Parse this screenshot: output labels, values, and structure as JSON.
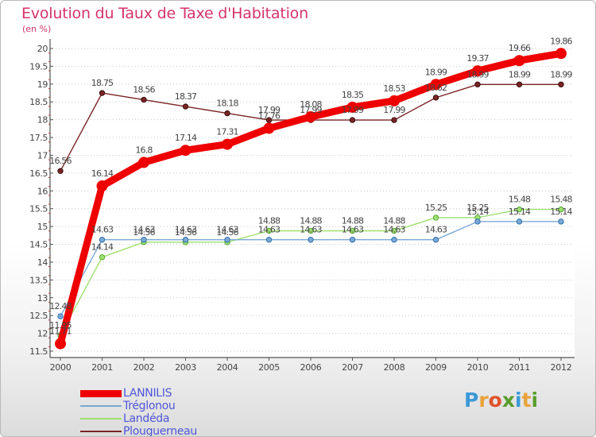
{
  "header": {
    "title": "Evolution du Taux de Taxe d'Habitation",
    "subtitle": "(en %)"
  },
  "logo": {
    "letters": [
      "P",
      "r",
      "o",
      "x",
      "i",
      "t",
      "i"
    ],
    "colors": [
      "#3a9ad9",
      "#e8a23a",
      "#e0522a",
      "#5a9e2f",
      "#3a9ad9",
      "#e8a23a",
      "#5a9e2f"
    ]
  },
  "chart_data": {
    "type": "line",
    "title": "Evolution du Taux de Taxe d'Habitation",
    "subtitle": "(en %)",
    "xlabel": "",
    "ylabel": "",
    "x": [
      "2000",
      "2001",
      "2002",
      "2003",
      "2004",
      "2005",
      "2006",
      "2007",
      "2008",
      "2009",
      "2010",
      "2011",
      "2012"
    ],
    "ylim": [
      11.5,
      20
    ],
    "yticks": [
      "11.5",
      "12",
      "12.5",
      "13",
      "13.5",
      "14",
      "14.5",
      "15",
      "15.5",
      "16",
      "16.5",
      "17",
      "17.5",
      "18",
      "18.5",
      "19",
      "19.5",
      "20"
    ],
    "grid": "horizontal dotted",
    "legend": "bottom-left",
    "series": [
      {
        "name": "Plouguerneau",
        "color": "#7a2424",
        "values": [
          16.56,
          18.75,
          18.56,
          18.37,
          18.18,
          17.99,
          17.99,
          17.99,
          17.99,
          18.62,
          18.99,
          18.99,
          18.99
        ],
        "labels": [
          "16.56",
          "18.75",
          "18.56",
          "18.37",
          "18.18",
          "17.99",
          "17.99",
          "17.99",
          "17.99",
          "18.62",
          "18.99",
          "18.99",
          "18.99"
        ]
      },
      {
        "name": "Landéda",
        "color": "#9ee070",
        "values": [
          11.95,
          14.14,
          14.56,
          14.56,
          14.56,
          14.88,
          14.88,
          14.88,
          14.88,
          15.25,
          15.25,
          15.48,
          15.48
        ],
        "labels": [
          "11.95",
          "14.14",
          "14.56",
          "14.56",
          "14.56",
          "14.88",
          "14.88",
          "14.88",
          "14.88",
          "15.25",
          "15.25",
          "15.48",
          "15.48"
        ]
      },
      {
        "name": "Tréglonou",
        "color": "#7ba9d4",
        "values": [
          12.48,
          14.63,
          14.63,
          14.63,
          14.63,
          14.63,
          14.63,
          14.63,
          14.63,
          14.63,
          15.14,
          15.14,
          15.14
        ],
        "labels": [
          "12.48",
          "14.63",
          "14.63",
          "14.63",
          "14.63",
          "14.63",
          "14.63",
          "14.63",
          "14.63",
          "14.63",
          "15.14",
          "15.14",
          "15.14"
        ]
      },
      {
        "name": "LANNILIS",
        "color": "#ee0000",
        "values": [
          11.71,
          16.14,
          16.8,
          17.14,
          17.31,
          17.76,
          18.08,
          18.35,
          18.53,
          18.99,
          19.37,
          19.66,
          19.86
        ],
        "labels": [
          "11.71",
          "16.14",
          "16.8",
          "17.14",
          "17.31",
          "17.76",
          "18.08",
          "18.35",
          "18.53",
          "18.99",
          "19.37",
          "19.66",
          "19.86"
        ]
      }
    ],
    "legend_order": [
      "LANNILIS",
      "Tréglonou",
      "Landéda",
      "Plouguerneau"
    ]
  }
}
